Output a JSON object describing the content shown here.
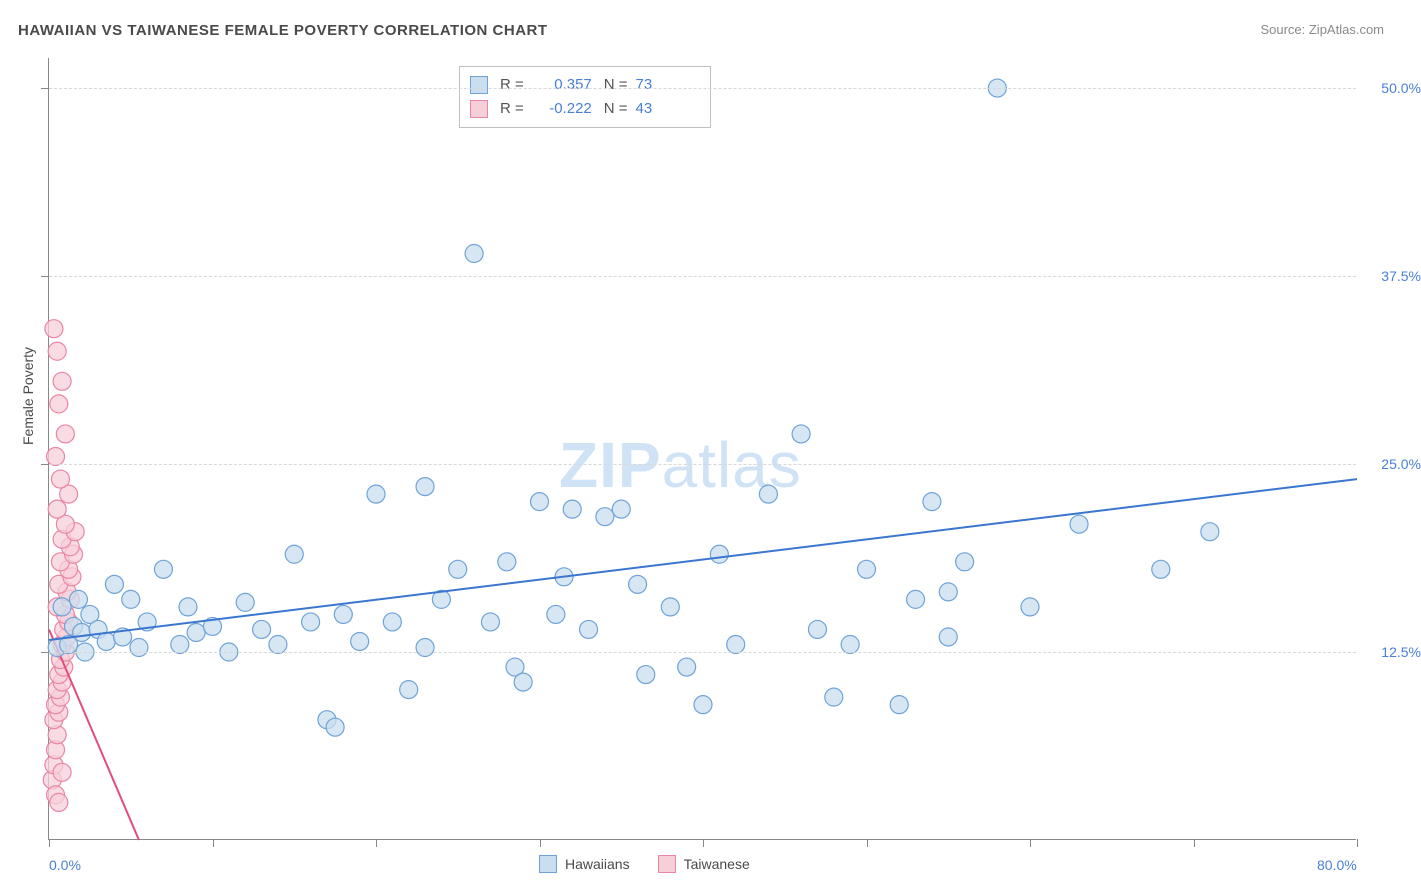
{
  "title": "HAWAIIAN VS TAIWANESE FEMALE POVERTY CORRELATION CHART",
  "source_label": "Source: ZipAtlas.com",
  "ylabel": "Female Poverty",
  "watermark_zip": "ZIP",
  "watermark_atlas": "atlas",
  "chart": {
    "type": "scatter",
    "xlim": [
      0,
      80
    ],
    "ylim": [
      0,
      52
    ],
    "xticks": [
      0,
      10,
      20,
      30,
      40,
      50,
      60,
      70,
      80
    ],
    "yticks": [
      12.5,
      25.0,
      37.5,
      50.0
    ],
    "xtick_labels": {
      "0": "0.0%",
      "80": "80.0%"
    },
    "ytick_labels": [
      "12.5%",
      "25.0%",
      "37.5%",
      "50.0%"
    ],
    "background_color": "#ffffff",
    "grid_color": "#d8d8d8",
    "axis_color": "#888888",
    "tick_label_color": "#4a7fd6",
    "marker_radius": 9,
    "marker_stroke_width": 1.2,
    "line_width": 2
  },
  "series": {
    "hawaiians": {
      "label": "Hawaiians",
      "fill": "#c9deef",
      "stroke": "#6fa3d8",
      "line_color": "#3a76d0",
      "r_label": "R =",
      "r_value": "0.357",
      "n_label": "N =",
      "n_value": "73",
      "regression": {
        "x1": 0,
        "y1": 13.3,
        "x2": 80,
        "y2": 24.0
      },
      "points": [
        [
          0.5,
          12.8
        ],
        [
          0.8,
          15.5
        ],
        [
          1.2,
          13.0
        ],
        [
          1.5,
          14.2
        ],
        [
          1.8,
          16.0
        ],
        [
          2.0,
          13.8
        ],
        [
          2.2,
          12.5
        ],
        [
          2.5,
          15.0
        ],
        [
          3.0,
          14.0
        ],
        [
          3.5,
          13.2
        ],
        [
          4.0,
          17.0
        ],
        [
          4.5,
          13.5
        ],
        [
          5.0,
          16.0
        ],
        [
          5.5,
          12.8
        ],
        [
          6.0,
          14.5
        ],
        [
          7.0,
          18.0
        ],
        [
          8.0,
          13.0
        ],
        [
          8.5,
          15.5
        ],
        [
          9.0,
          13.8
        ],
        [
          10.0,
          14.2
        ],
        [
          11.0,
          12.5
        ],
        [
          12.0,
          15.8
        ],
        [
          13.0,
          14.0
        ],
        [
          14.0,
          13.0
        ],
        [
          15.0,
          19.0
        ],
        [
          16.0,
          14.5
        ],
        [
          17.0,
          8.0
        ],
        [
          17.5,
          7.5
        ],
        [
          18.0,
          15.0
        ],
        [
          19.0,
          13.2
        ],
        [
          20.0,
          23.0
        ],
        [
          21.0,
          14.5
        ],
        [
          22.0,
          10.0
        ],
        [
          23.0,
          12.8
        ],
        [
          23.0,
          23.5
        ],
        [
          24.0,
          16.0
        ],
        [
          25.0,
          18.0
        ],
        [
          26.0,
          39.0
        ],
        [
          27.0,
          14.5
        ],
        [
          28.0,
          18.5
        ],
        [
          28.5,
          11.5
        ],
        [
          29.0,
          10.5
        ],
        [
          30.0,
          22.5
        ],
        [
          31.0,
          15.0
        ],
        [
          31.5,
          17.5
        ],
        [
          32.0,
          22.0
        ],
        [
          33.0,
          14.0
        ],
        [
          34.0,
          21.5
        ],
        [
          35.0,
          22.0
        ],
        [
          36.0,
          17.0
        ],
        [
          36.5,
          11.0
        ],
        [
          38.0,
          15.5
        ],
        [
          39.0,
          11.5
        ],
        [
          40.0,
          9.0
        ],
        [
          41.0,
          19.0
        ],
        [
          42.0,
          13.0
        ],
        [
          44.0,
          23.0
        ],
        [
          46.0,
          27.0
        ],
        [
          47.0,
          14.0
        ],
        [
          48.0,
          9.5
        ],
        [
          49.0,
          13.0
        ],
        [
          50.0,
          18.0
        ],
        [
          52.0,
          9.0
        ],
        [
          53.0,
          16.0
        ],
        [
          54.0,
          22.5
        ],
        [
          55.0,
          13.5
        ],
        [
          56.0,
          18.5
        ],
        [
          58.0,
          50.0
        ],
        [
          60.0,
          15.5
        ],
        [
          63.0,
          21.0
        ],
        [
          68.0,
          18.0
        ],
        [
          71.0,
          20.5
        ],
        [
          55.0,
          16.5
        ]
      ]
    },
    "taiwanese": {
      "label": "Taiwanese",
      "fill": "#f7cfd9",
      "stroke": "#e986a3",
      "line_color": "#e24d7a",
      "r_label": "R =",
      "r_value": "-0.222",
      "n_label": "N =",
      "n_value": "43",
      "regression": {
        "x1": 0,
        "y1": 14.0,
        "x2": 5.5,
        "y2": 0
      },
      "points": [
        [
          0.2,
          4.0
        ],
        [
          0.3,
          5.0
        ],
        [
          0.4,
          6.0
        ],
        [
          0.5,
          7.0
        ],
        [
          0.3,
          8.0
        ],
        [
          0.6,
          8.5
        ],
        [
          0.4,
          9.0
        ],
        [
          0.7,
          9.5
        ],
        [
          0.5,
          10.0
        ],
        [
          0.8,
          10.5
        ],
        [
          0.6,
          11.0
        ],
        [
          0.9,
          11.5
        ],
        [
          0.7,
          12.0
        ],
        [
          1.0,
          12.5
        ],
        [
          0.8,
          13.0
        ],
        [
          1.1,
          13.5
        ],
        [
          0.9,
          14.0
        ],
        [
          1.2,
          14.5
        ],
        [
          1.0,
          15.0
        ],
        [
          0.5,
          15.5
        ],
        [
          1.3,
          16.0
        ],
        [
          1.1,
          16.5
        ],
        [
          0.6,
          17.0
        ],
        [
          1.4,
          17.5
        ],
        [
          1.2,
          18.0
        ],
        [
          0.7,
          18.5
        ],
        [
          1.5,
          19.0
        ],
        [
          1.3,
          19.5
        ],
        [
          0.8,
          20.0
        ],
        [
          1.6,
          20.5
        ],
        [
          1.0,
          21.0
        ],
        [
          0.5,
          22.0
        ],
        [
          1.2,
          23.0
        ],
        [
          0.7,
          24.0
        ],
        [
          0.4,
          25.5
        ],
        [
          1.0,
          27.0
        ],
        [
          0.6,
          29.0
        ],
        [
          0.8,
          30.5
        ],
        [
          0.5,
          32.5
        ],
        [
          0.3,
          34.0
        ],
        [
          0.4,
          3.0
        ],
        [
          0.6,
          2.5
        ],
        [
          0.8,
          4.5
        ]
      ]
    }
  },
  "legend_items": [
    "hawaiians",
    "taiwanese"
  ]
}
